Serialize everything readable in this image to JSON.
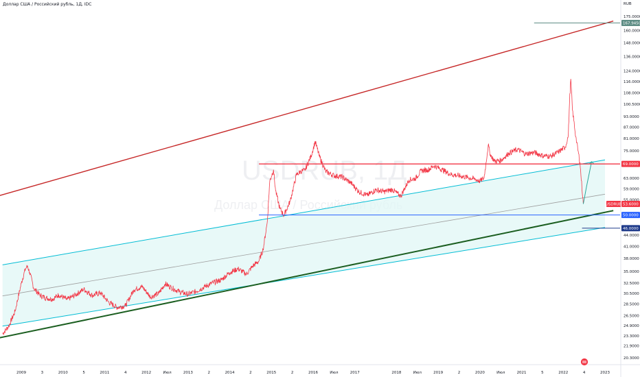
{
  "header": {
    "title": "Доллар США / Российский рубль, 1Д, IDC",
    "currency": "RUB"
  },
  "watermark": {
    "symbol": "USDRUB, 1Д",
    "name": "Доллар США / Российский рубль"
  },
  "chart_data": {
    "type": "line",
    "symbol": "USDRUB",
    "y_scale": "log",
    "ylim": [
      20.3,
      178
    ],
    "y_ticks": [
      "175.0000",
      "160.0000",
      "148.0000",
      "136.0000",
      "124.0000",
      "116.0000",
      "108.0000",
      "100.5000",
      "93.0000",
      "87.0000",
      "81.0000",
      "75.0000",
      "69.0000",
      "63.0000",
      "59.0000",
      "55.0000",
      "50.0000",
      "46.0000",
      "44.0000",
      "41.0000",
      "38.0000",
      "35.0000",
      "32.5000",
      "30.5000",
      "28.5000",
      "26.5000",
      "24.9000",
      "23.3000",
      "21.9000",
      "20.3000"
    ],
    "y_tick_values": [
      175,
      160,
      148,
      136,
      124,
      116,
      108,
      100.5,
      93,
      87,
      81,
      75,
      69,
      63,
      59,
      55,
      50,
      46,
      44,
      41,
      38,
      35,
      32.5,
      30.5,
      28.5,
      26.5,
      24.9,
      23.3,
      21.9,
      20.3
    ],
    "x_ticks": [
      "2009",
      "3",
      "2010",
      "5",
      "2011",
      "4",
      "2012",
      "Июл",
      "2013",
      "2",
      "2014",
      "2",
      "2015",
      "2",
      "2016",
      "Июл",
      "2017",
      "2018",
      "Июл",
      "2019",
      "2",
      "2020",
      "Июл",
      "2021",
      "5",
      "2022",
      "4",
      "2023"
    ],
    "x_tick_years": [
      2009.0,
      2009.5,
      2010.0,
      2010.5,
      2011.0,
      2011.5,
      2012.0,
      2012.5,
      2013.0,
      2013.5,
      2014.0,
      2014.5,
      2015.0,
      2015.5,
      2016.0,
      2016.5,
      2017.0,
      2018.0,
      2018.5,
      2019.0,
      2019.5,
      2020.0,
      2020.5,
      2021.0,
      2021.5,
      2022.0,
      2022.5,
      2023.0
    ],
    "price_series": {
      "name": "USDRUB",
      "x": [
        2008.55,
        2008.7,
        2008.85,
        2009.0,
        2009.1,
        2009.15,
        2009.2,
        2009.3,
        2009.45,
        2009.6,
        2009.75,
        2009.9,
        2010.1,
        2010.3,
        2010.5,
        2010.7,
        2010.9,
        2011.1,
        2011.3,
        2011.5,
        2011.7,
        2011.9,
        2012.1,
        2012.3,
        2012.45,
        2012.6,
        2012.8,
        2013.0,
        2013.2,
        2013.4,
        2013.6,
        2013.8,
        2014.0,
        2014.2,
        2014.4,
        2014.55,
        2014.7,
        2014.8,
        2014.9,
        2014.96,
        2015.05,
        2015.1,
        2015.2,
        2015.3,
        2015.45,
        2015.6,
        2015.7,
        2015.8,
        2015.95,
        2016.05,
        2016.15,
        2016.3,
        2016.5,
        2016.7,
        2016.9,
        2017.1,
        2017.3,
        2017.5,
        2017.7,
        2017.9,
        2018.1,
        2018.3,
        2018.45,
        2018.6,
        2018.75,
        2018.9,
        2019.1,
        2019.3,
        2019.5,
        2019.7,
        2019.9,
        2020.0,
        2020.1,
        2020.2,
        2020.25,
        2020.35,
        2020.5,
        2020.7,
        2020.9,
        2021.1,
        2021.3,
        2021.5,
        2021.7,
        2021.9,
        2022.05,
        2022.12,
        2022.15,
        2022.18,
        2022.22,
        2022.3,
        2022.4,
        2022.48
      ],
      "y": [
        23.6,
        24.8,
        27.2,
        32.5,
        35.6,
        36.2,
        34.8,
        31.5,
        30.1,
        29.6,
        29.4,
        30.2,
        29.3,
        30.2,
        31.3,
        30.1,
        30.6,
        28.8,
        27.9,
        28.2,
        31.2,
        31.8,
        29.8,
        30.5,
        32.4,
        31.6,
        30.8,
        30.3,
        30.9,
        31.8,
        32.6,
        33.2,
        34.8,
        35.6,
        34.4,
        36.2,
        37.4,
        40.2,
        47.8,
        62.0,
        66.5,
        58.2,
        52.1,
        49.9,
        54.6,
        64.4,
        65.8,
        66.2,
        72.5,
        79.5,
        72.4,
        65.8,
        64.1,
        63.5,
        61.3,
        57.9,
        56.6,
        58.6,
        57.9,
        58.7,
        56.3,
        62.4,
        62.9,
        66.2,
        66.4,
        68.2,
        66.5,
        64.6,
        64.0,
        63.4,
        62.6,
        61.9,
        63.1,
        77.8,
        73.2,
        70.2,
        70.5,
        73.9,
        75.6,
        73.5,
        74.2,
        72.7,
        72.4,
        74.6,
        76.8,
        82.5,
        102.0,
        118.0,
        97.0,
        82.0,
        69.5,
        53.6
      ]
    },
    "channel": {
      "upper": {
        "x": [
          2008.55,
          2023.0
        ],
        "y": [
          36.5,
          70.8
        ]
      },
      "mid": {
        "x": [
          2008.55,
          2023.0
        ],
        "y": [
          30.0,
          57.0
        ]
      },
      "lower": {
        "x": [
          2008.55,
          2023.0
        ],
        "y": [
          24.8,
          46.2
        ]
      }
    },
    "support_line": {
      "x": [
        2008.45,
        2023.2
      ],
      "y": [
        23.0,
        51.4
      ]
    },
    "resistance_line": {
      "x": [
        2008.45,
        2023.2
      ],
      "y": [
        56.4,
        170.0
      ]
    },
    "projection_arrow": {
      "x": [
        2022.48,
        2022.56,
        2022.68
      ],
      "y": [
        53.6,
        60.0,
        70.0
      ]
    },
    "levels": [
      {
        "value": 167.945,
        "label": "167.9450",
        "color": "#5d8c84",
        "from": 2021.3
      },
      {
        "value": 69.0,
        "label": "69.0000",
        "color": "#f23645",
        "from": 2014.7
      },
      {
        "value": 53.6,
        "label": "53.6000",
        "color": "#f23645",
        "symbol": "USDRUB"
      },
      {
        "value": 50.0,
        "label": "50.0000",
        "color": "#2962ff",
        "from": 2014.7
      },
      {
        "value": 46.0,
        "label": "46.0000",
        "color": "#1e3a8a",
        "from": 2022.45
      }
    ],
    "colors": {
      "price": "#f23645",
      "channel": "#00bcd4",
      "channel_fill": "#e0f7f6",
      "mid": "#9e9e9e",
      "support": "#1b5e20",
      "resistance": "#c62828"
    }
  }
}
